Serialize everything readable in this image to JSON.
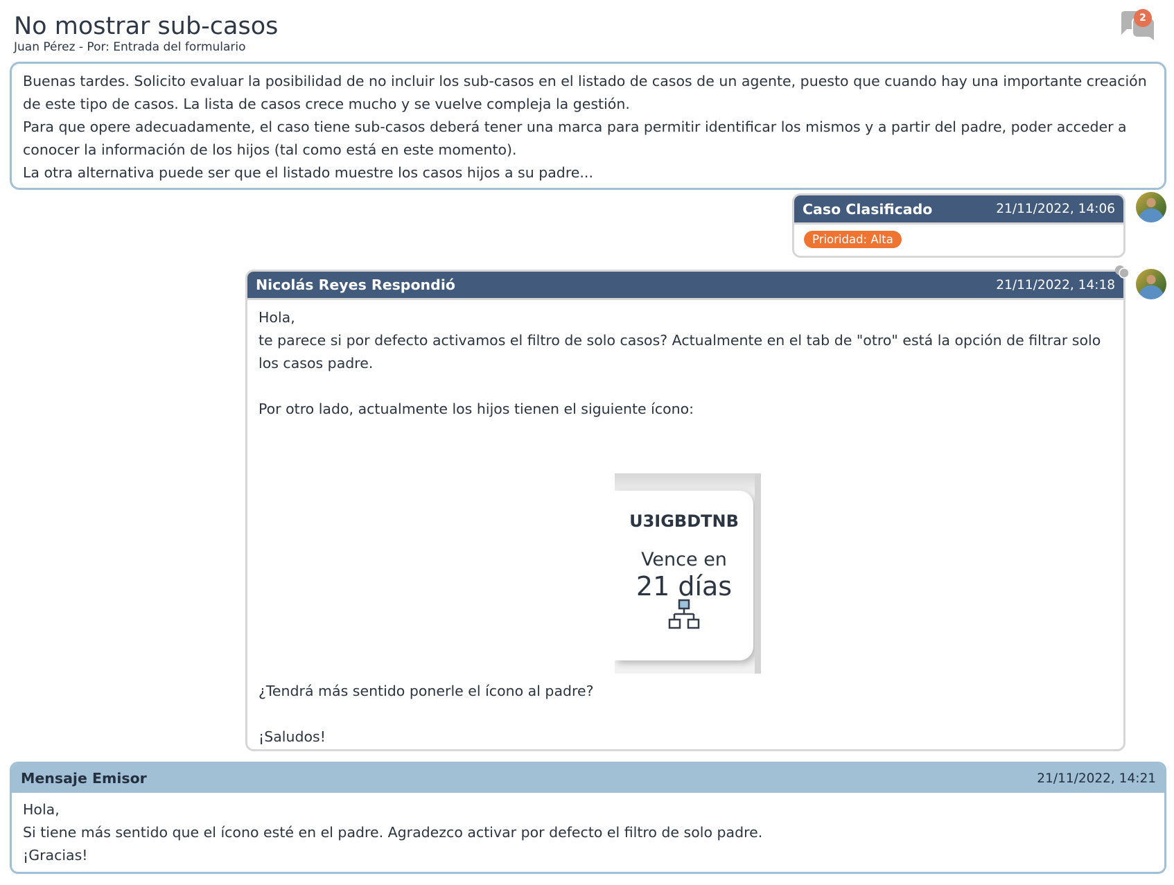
{
  "header": {
    "title": "No mostrar sub-casos",
    "subtitle": "Juan Pérez - Por: Entrada del formulario",
    "notification_count": "2",
    "chat_icon": "chat-bubbles-icon"
  },
  "description": {
    "paragraphs": [
      "Buenas tardes. Solicito evaluar la posibilidad de no incluir los sub-casos en el listado de casos de un agente, puesto que cuando hay una importante creación de este tipo de casos. La lista de casos crece mucho y se vuelve compleja la gestión.",
      "Para que opere adecuadamente, el caso tiene sub-casos deberá tener una marca para permitir identificar los mismos y a partir del padre, poder acceder a conocer la información de los hijos (tal como está en este momento).",
      "La otra alternativa puede ser que el listado muestre los casos hijos a su padre..."
    ]
  },
  "classified": {
    "title": "Caso Clasificado",
    "datetime": "21/11/2022, 14:06",
    "priority": "Prioridad: Alta",
    "priority_color": "#ef7331"
  },
  "reply": {
    "title": "Nicolás Reyes Respondió",
    "datetime": "21/11/2022, 14:18",
    "lines": [
      "Hola,",
      "te parece si por defecto activamos el filtro de solo casos? Actualmente en el tab de \"otro\" está la opción de filtrar solo los casos padre.",
      "",
      "Por otro lado, actualmente los hijos tienen el siguiente ícono:"
    ],
    "image": {
      "code": "U3IGBDTNB",
      "due_label": "Vence en",
      "due_value": "21 días",
      "icon": "hierarchy-icon"
    },
    "after": [
      "¿Tendrá más sentido ponerle el ícono al padre?",
      "",
      "¡Saludos!"
    ]
  },
  "emisor": {
    "title": "Mensaje Emisor",
    "datetime": "21/11/2022, 14:21",
    "lines": [
      "Hola,",
      "Si tiene más sentido que el ícono esté en el padre. Agradezco activar por defecto el filtro de solo padre.",
      "¡Gracias!"
    ]
  },
  "colors": {
    "header_dark": "#425a7b",
    "accent_light": "#a1c0d6",
    "badge": "#e4714f"
  }
}
